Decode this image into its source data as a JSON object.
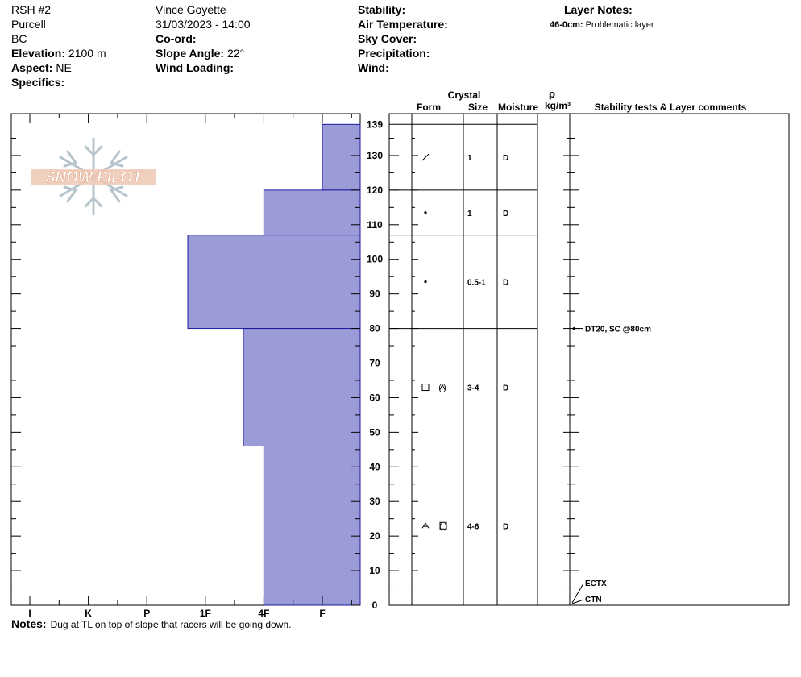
{
  "header": {
    "pit_name": "RSH #2",
    "range": "Purcell",
    "region": "BC",
    "elevation_label": "Elevation:",
    "elevation_value": "2100 m",
    "aspect_label": "Aspect:",
    "aspect_value": "NE",
    "specifics_label": "Specifics:",
    "observer": "Vince Goyette",
    "datetime": "31/03/2023 - 14:00",
    "coord_label": "Co-ord:",
    "slope_label": "Slope Angle:",
    "slope_value": "22°",
    "wind_loading_label": "Wind Loading:",
    "stability_label": "Stability:",
    "air_temp_label": "Air Temperature:",
    "sky_cover_label": "Sky Cover:",
    "precip_label": "Precipitation:",
    "wind_label": "Wind:",
    "layer_notes_label": "Layer Notes:",
    "layer_note_range": "46-0cm:",
    "layer_note_text": "Problematic layer"
  },
  "columns": {
    "crystal": "Crystal",
    "form": "Form",
    "size": "Size",
    "moisture": "Moisture",
    "rho": "ρ",
    "density_unit": "kg/m³",
    "stability": "Stability tests & Layer comments"
  },
  "watermark": "SNOW PILOT",
  "notes_label": "Notes:",
  "notes_text": "Dug at TL on top of slope that racers will be going down.",
  "colors": {
    "layer_fill": "#9b9bd7",
    "layer_stroke": "#1a1aa0",
    "watermark_fill": "#f0c8b4"
  },
  "chart_data": {
    "type": "bar",
    "orientation": "horizontal",
    "x_tick_labels": [
      "I",
      "K",
      "P",
      "1F",
      "4F",
      "F"
    ],
    "x_axis_direction": "hardness decreases to the right",
    "y_range": [
      0,
      139
    ],
    "y_ticks": [
      0,
      10,
      20,
      30,
      40,
      50,
      60,
      70,
      80,
      90,
      100,
      110,
      120,
      130,
      139
    ],
    "layers": [
      {
        "top": 139,
        "bottom": 120,
        "hardness": "F",
        "hardness_index": 5,
        "form": "decomposing",
        "size": "1",
        "moisture": "D"
      },
      {
        "top": 120,
        "bottom": 107,
        "hardness": "4F",
        "hardness_index": 4,
        "form": "rounded",
        "size": "1",
        "moisture": "D"
      },
      {
        "top": 107,
        "bottom": 80,
        "hardness": "1F-",
        "hardness_index": 2.7,
        "form": "rounded",
        "size": "0.5-1",
        "moisture": "D"
      },
      {
        "top": 80,
        "bottom": 46,
        "hardness": "4F-",
        "hardness_index": 3.65,
        "form": "faceted (depth hoar)",
        "size": "3-4",
        "moisture": "D"
      },
      {
        "top": 46,
        "bottom": 0,
        "hardness": "4F",
        "hardness_index": 4,
        "form": "depth hoar (faceted)",
        "size": "4-6",
        "moisture": "D"
      }
    ],
    "stability_tests": [
      {
        "label": "DT20, SC @80cm",
        "depth": 80
      },
      {
        "label": "ECTX",
        "depth": 0
      },
      {
        "label": "CTN",
        "depth": 0
      }
    ]
  }
}
